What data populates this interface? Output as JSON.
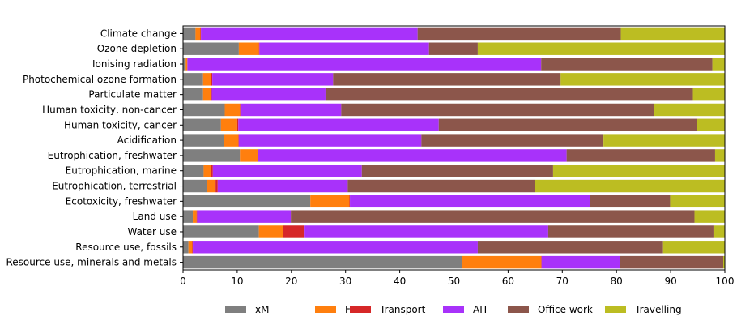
{
  "chart_data": {
    "type": "bar",
    "orientation": "horizontal",
    "stacked": true,
    "categories": [
      "Climate change",
      "Ozone depletion",
      "Ionising radiation",
      "Photochemical ozone formation",
      "Particulate matter",
      "Human toxicity, non-cancer",
      "Human toxicity, cancer",
      "Acidification",
      "Eutrophication, freshwater",
      "Eutrophication, marine",
      "Eutrophication, terrestrial",
      "Ecotoxicity, freshwater",
      "Land use",
      "Water use",
      "Resource use, fossils",
      "Resource use, minerals and metals"
    ],
    "series": [
      {
        "name": "xM",
        "color": "#7f7f7f",
        "values": [
          2.3,
          10.3,
          0.5,
          3.7,
          3.7,
          7.7,
          7.0,
          7.5,
          10.5,
          3.8,
          4.4,
          23.5,
          1.8,
          14.0,
          1.0,
          51.5
        ]
      },
      {
        "name": "FM",
        "color": "#ff7f0e",
        "values": [
          0.9,
          3.7,
          0.3,
          1.4,
          1.4,
          2.8,
          3.0,
          2.7,
          3.3,
          1.4,
          1.6,
          7.2,
          0.7,
          4.5,
          0.7,
          14.6
        ]
      },
      {
        "name": "Transport",
        "color": "#d62728",
        "values": [
          0.1,
          0.1,
          0.0,
          0.3,
          0.2,
          0.1,
          0.2,
          0.1,
          0.1,
          0.3,
          0.4,
          0.1,
          0.1,
          3.8,
          0.1,
          0.1
        ]
      },
      {
        "name": "AIT",
        "color": "#a832fa",
        "values": [
          40.0,
          31.3,
          65.3,
          22.3,
          21.0,
          18.6,
          37.0,
          33.7,
          56.9,
          27.5,
          24.0,
          44.3,
          17.3,
          45.1,
          52.6,
          14.5
        ]
      },
      {
        "name": "Office work",
        "color": "#8c564b",
        "values": [
          37.5,
          9.0,
          31.6,
          42.0,
          67.8,
          57.7,
          47.6,
          33.6,
          27.4,
          35.3,
          34.5,
          14.8,
          74.5,
          30.5,
          34.2,
          19.0
        ]
      },
      {
        "name": "Travelling",
        "color": "#bcbd22",
        "values": [
          19.2,
          45.6,
          2.3,
          30.3,
          5.9,
          13.1,
          5.2,
          22.4,
          1.8,
          31.7,
          35.1,
          10.1,
          5.6,
          2.1,
          11.4,
          0.3
        ]
      }
    ],
    "xlim": [
      0,
      100
    ],
    "xticks": [
      "0",
      "10",
      "20",
      "30",
      "40",
      "50",
      "60",
      "70",
      "80",
      "90",
      "100"
    ],
    "grid": false,
    "legend_position": "bottom"
  }
}
